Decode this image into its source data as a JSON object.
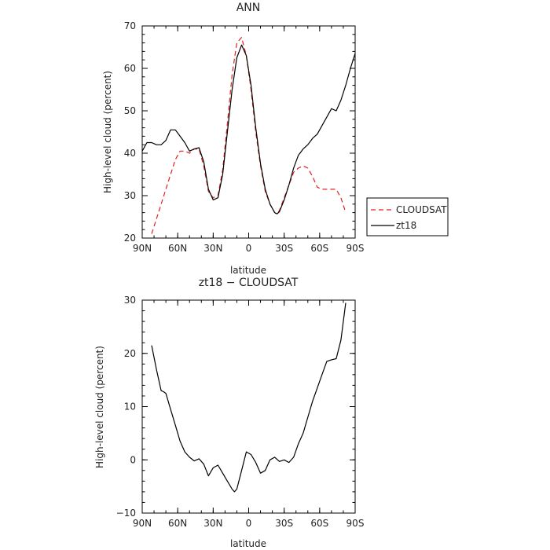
{
  "chart_data": [
    {
      "type": "line",
      "title": "ANN",
      "xlabel": "latitude",
      "ylabel": "High-level cloud (percent)",
      "xlim": [
        90,
        -90
      ],
      "ylim": [
        20,
        70
      ],
      "x_ticks": [
        90,
        60,
        30,
        0,
        -30,
        -60,
        -90
      ],
      "x_tick_labels": [
        "90N",
        "60N",
        "30N",
        "0",
        "30S",
        "60S",
        "90S"
      ],
      "y_ticks": [
        20,
        30,
        40,
        50,
        60,
        70
      ],
      "y_tick_labels": [
        "20",
        "30",
        "40",
        "50",
        "60",
        "70"
      ],
      "legend_position": "right",
      "series": [
        {
          "name": "CLOUDSAT",
          "color": "#e02020",
          "dash": "dashed",
          "x": [
            82,
            78,
            74,
            70,
            66,
            62,
            58,
            54,
            50,
            46,
            42,
            38,
            34,
            30,
            26,
            22,
            18,
            14,
            10,
            6,
            2,
            -2,
            -6,
            -10,
            -14,
            -18,
            -22,
            -24,
            -26,
            -30,
            -34,
            -38,
            -42,
            -46,
            -50,
            -54,
            -58,
            -62,
            -66,
            -70,
            -74,
            -78,
            -82
          ],
          "y": [
            21,
            24.5,
            28,
            31.5,
            35,
            38.5,
            40.5,
            40.5,
            40,
            41,
            41,
            37,
            31,
            29.5,
            30,
            36,
            47,
            58.5,
            66,
            67.3,
            63,
            55,
            45,
            37,
            31,
            28,
            26,
            25.7,
            26.5,
            29.5,
            32.5,
            35.5,
            36.5,
            37,
            36.5,
            34.5,
            32,
            31.5,
            31.5,
            31.5,
            31.5,
            29.5,
            26
          ]
        },
        {
          "name": "zt18",
          "color": "#000000",
          "dash": "solid",
          "x": [
            90,
            86,
            82,
            78,
            74,
            70,
            66,
            62,
            58,
            54,
            50,
            46,
            42,
            38,
            34,
            30,
            26,
            22,
            18,
            14,
            10,
            6,
            2,
            -2,
            -6,
            -10,
            -14,
            -18,
            -22,
            -24,
            -26,
            -30,
            -34,
            -38,
            -42,
            -46,
            -50,
            -54,
            -58,
            -62,
            -66,
            -70,
            -74,
            -78,
            -82,
            -86,
            -90
          ],
          "y": [
            40.5,
            42.5,
            42.5,
            42,
            42,
            43,
            45.5,
            45.5,
            44,
            42.5,
            40.5,
            41,
            41.3,
            38,
            31.5,
            29,
            29.5,
            35,
            45,
            55,
            62.5,
            65.5,
            63,
            56,
            46,
            37.5,
            31.5,
            28,
            26,
            25.7,
            26.2,
            29,
            32.5,
            36.5,
            39.5,
            41,
            42,
            43.5,
            44.5,
            46.5,
            48.5,
            50.5,
            50,
            52.5,
            56,
            60,
            63.5
          ]
        }
      ]
    },
    {
      "type": "line",
      "title": "zt18 − CLOUDSAT",
      "xlabel": "latitude",
      "ylabel": "High-level cloud (percent)",
      "xlim": [
        90,
        -90
      ],
      "ylim": [
        -10,
        30
      ],
      "x_ticks": [
        90,
        60,
        30,
        0,
        -30,
        -60,
        -90
      ],
      "x_tick_labels": [
        "90N",
        "60N",
        "30N",
        "0",
        "30S",
        "60S",
        "90S"
      ],
      "y_ticks": [
        -10,
        0,
        10,
        20,
        30
      ],
      "y_tick_labels": [
        "−10",
        "0",
        "10",
        "20",
        "30"
      ],
      "series": [
        {
          "name": "zt18 − CLOUDSAT",
          "color": "#000000",
          "dash": "solid",
          "x": [
            82,
            78,
            74,
            72,
            70,
            66,
            62,
            58,
            54,
            50,
            46,
            42,
            38,
            34,
            30,
            26,
            22,
            18,
            14,
            12,
            10,
            6,
            2,
            -2,
            -6,
            -10,
            -14,
            -18,
            -22,
            -26,
            -30,
            -34,
            -38,
            -42,
            -46,
            -50,
            -54,
            -58,
            -62,
            -66,
            -70,
            -74,
            -78,
            -82
          ],
          "y": [
            21.5,
            17,
            13,
            12.8,
            12.5,
            9.5,
            6.5,
            3.5,
            1.5,
            0.5,
            -0.2,
            0.2,
            -0.8,
            -3,
            -1.5,
            -1,
            -2.5,
            -4,
            -5.5,
            -6,
            -5.5,
            -2,
            1.5,
            1,
            -0.5,
            -2.5,
            -2,
            0,
            0.5,
            -0.3,
            0,
            -0.5,
            0.5,
            3,
            5,
            8,
            11,
            13.5,
            16,
            18.5,
            18.8,
            19,
            22.5,
            29.5
          ]
        }
      ]
    }
  ]
}
